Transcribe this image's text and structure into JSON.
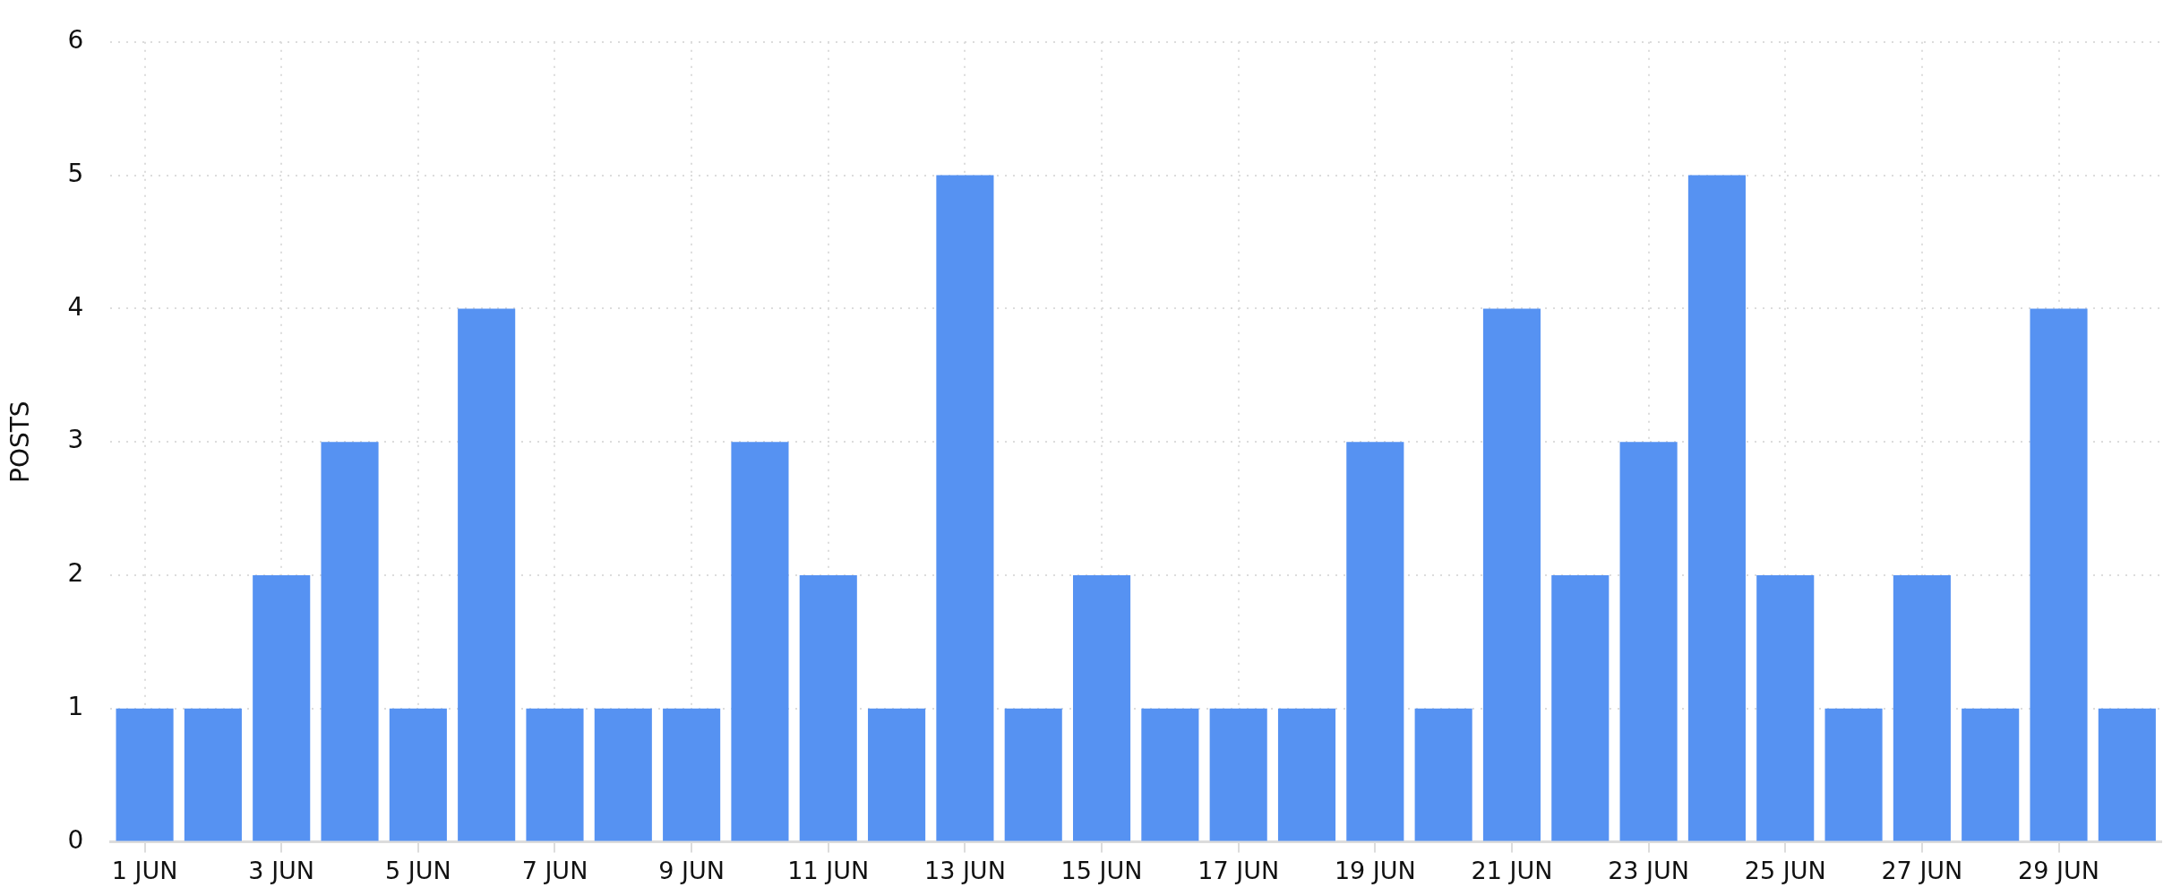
{
  "chart_data": {
    "type": "bar",
    "ylabel": "POSTS",
    "categories": [
      "1 JUN",
      null,
      "3 JUN",
      null,
      "5 JUN",
      null,
      "7 JUN",
      null,
      "9 JUN",
      null,
      "11 JUN",
      null,
      "13 JUN",
      null,
      "15 JUN",
      null,
      "17 JUN",
      null,
      "19 JUN",
      null,
      "21 JUN",
      null,
      "23 JUN",
      null,
      "25 JUN",
      null,
      "27 JUN",
      null,
      "29 JUN",
      null
    ],
    "values": [
      1,
      1,
      2,
      3,
      1,
      4,
      1,
      1,
      1,
      3,
      2,
      1,
      5,
      1,
      2,
      1,
      1,
      1,
      3,
      1,
      4,
      2,
      3,
      5,
      2,
      1,
      2,
      1,
      4,
      1
    ],
    "color": "#5692f2",
    "ylim": [
      0,
      6
    ],
    "yticks": [
      0,
      1,
      2,
      3,
      4,
      5,
      6
    ],
    "grid": true
  }
}
